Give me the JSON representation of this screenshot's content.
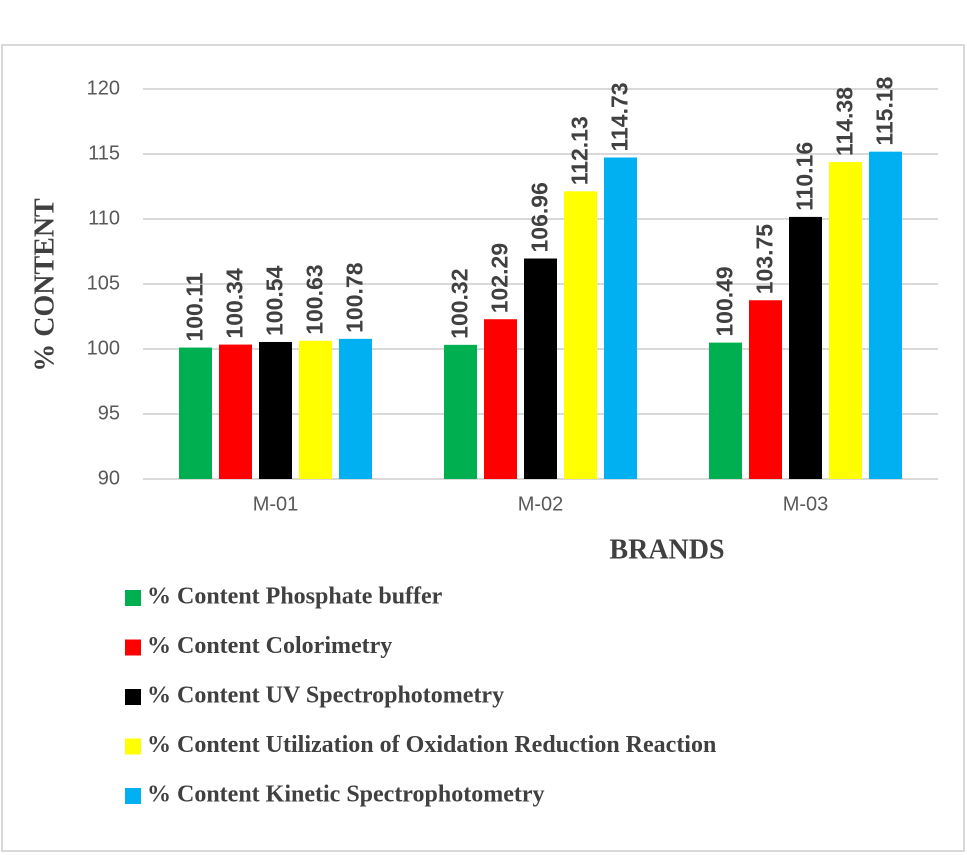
{
  "chart_data": {
    "type": "bar",
    "x_label": "BRANDS",
    "y_label": "% CONTENT",
    "categories": [
      "M-01",
      "M-02",
      "M-03"
    ],
    "series": [
      {
        "name": "% Content Phosphate buffer",
        "color": "#00b050",
        "values": [
          100.11,
          100.32,
          100.49
        ]
      },
      {
        "name": "% Content Colorimetry",
        "color": "#ff0000",
        "values": [
          100.34,
          102.29,
          103.75
        ]
      },
      {
        "name": "% Content UV Spectrophotometry",
        "color": "#000000",
        "values": [
          100.54,
          106.96,
          110.16
        ]
      },
      {
        "name": "% Content Utilization of Oxidation Reduction Reaction",
        "color": "#ffff00",
        "values": [
          100.63,
          112.13,
          114.38
        ]
      },
      {
        "name": "% Content Kinetic Spectrophotometry",
        "color": "#00b0f0",
        "values": [
          100.78,
          114.73,
          115.18
        ]
      }
    ],
    "ylim": [
      90,
      120
    ],
    "yticks": [
      90,
      95,
      100,
      105,
      110,
      115,
      120
    ],
    "grid": true,
    "legend": "bottom"
  }
}
